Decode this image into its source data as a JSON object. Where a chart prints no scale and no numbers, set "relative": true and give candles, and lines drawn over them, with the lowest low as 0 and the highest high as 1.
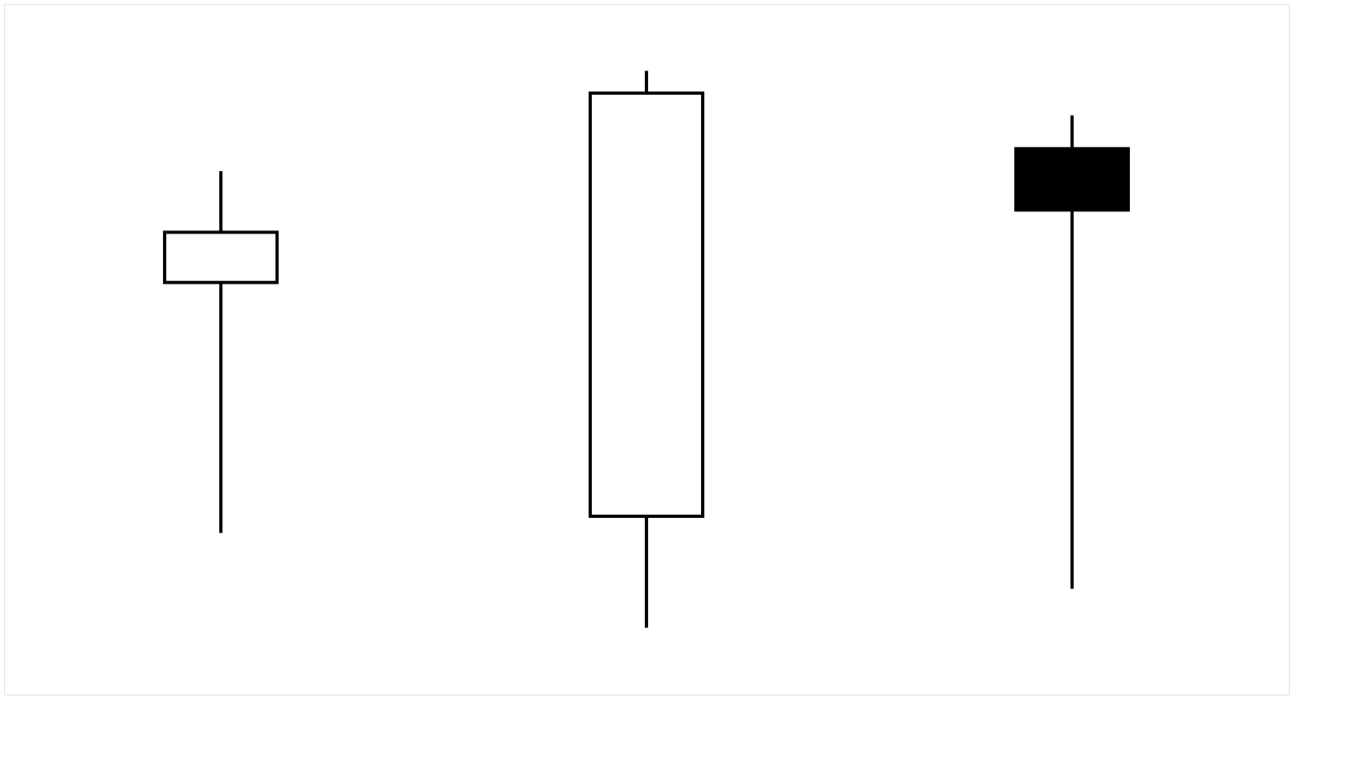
{
  "chart_data": {
    "type": "candlestick",
    "relative": true,
    "categories": [
      null,
      null,
      null
    ],
    "ohlc": [
      [
        0.62,
        0.82,
        0.17,
        0.71
      ],
      [
        0.2,
        1,
        0,
        0.96
      ],
      [
        0.86,
        0.92,
        0.07,
        0.75
      ]
    ],
    "colors": [
      "#ffffff",
      "#ffffff",
      "#000000"
    ]
  }
}
